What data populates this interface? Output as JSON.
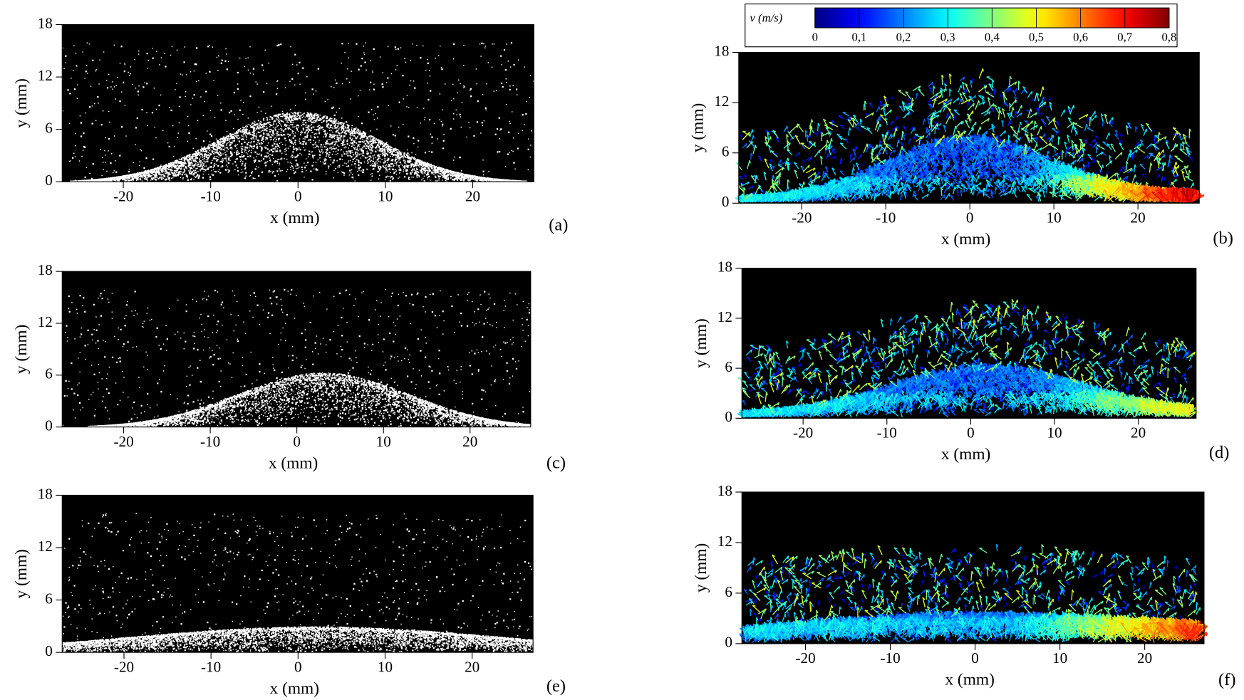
{
  "chart_data": [
    {
      "type": "image",
      "label": "(a)",
      "xlabel": "x (mm)",
      "ylabel": "y (mm)",
      "xlim": [
        -27,
        27
      ],
      "ylim": [
        0,
        18
      ],
      "xticks": [
        -20,
        -10,
        0,
        10,
        20
      ],
      "yticks": [
        0,
        6,
        12,
        18
      ],
      "background": "#000000",
      "color": "#ffffff"
    },
    {
      "type": "vector",
      "label": "(b)",
      "xlabel": "x (mm)",
      "ylabel": "y (mm)",
      "xlim": [
        -27.5,
        27.3
      ],
      "ylim": [
        0,
        18
      ],
      "xticks": [
        -20,
        -10,
        0,
        10,
        20
      ],
      "yticks": [
        0,
        6,
        12,
        18
      ],
      "background": "#000000",
      "colormap": "jet",
      "colorbar": {
        "title": "v (m/s)",
        "lim": [
          0,
          0.8
        ],
        "ticks": [
          0,
          {
            "value": 0.1,
            "label": "0,1"
          },
          {
            "value": 0.2,
            "label": "0,2"
          },
          {
            "value": 0.3,
            "label": "0,3"
          },
          {
            "value": 0.4,
            "label": "0,4"
          },
          {
            "value": 0.5,
            "label": "0,5"
          },
          {
            "value": 0.6,
            "label": "0,6"
          },
          {
            "value": 0.7,
            "label": "0,7"
          },
          {
            "value": 0.8,
            "label": "0,8"
          }
        ]
      }
    },
    {
      "type": "image",
      "label": "(c)",
      "xlabel": "x (mm)",
      "ylabel": "y (mm)",
      "xlim": [
        -27.1,
        27
      ],
      "ylim": [
        0,
        18
      ],
      "xticks": [
        -20,
        -10,
        0,
        10,
        20
      ],
      "yticks": [
        0,
        6,
        12,
        18
      ],
      "background": "#000000",
      "color": "#ffffff"
    },
    {
      "type": "vector",
      "label": "(d)",
      "xlabel": "x (mm)",
      "ylabel": "y (mm)",
      "xlim": [
        -27.3,
        26.9
      ],
      "ylim": [
        0,
        18
      ],
      "xticks": [
        -20,
        -10,
        0,
        10,
        20
      ],
      "yticks": [
        0,
        6,
        12,
        18
      ],
      "background": "#000000",
      "colormap": "jet"
    },
    {
      "type": "image",
      "label": "(e)",
      "xlabel": "x (mm)",
      "ylabel": "y (mm)",
      "xlim": [
        -27.1,
        27
      ],
      "ylim": [
        0,
        18
      ],
      "xticks": [
        -20,
        -10,
        0,
        10,
        20
      ],
      "yticks": [
        0,
        6,
        12,
        18
      ],
      "background": "#000000",
      "color": "#ffffff"
    },
    {
      "type": "vector",
      "label": "(f)",
      "xlabel": "x (mm)",
      "ylabel": "y (mm)",
      "xlim": [
        -27.5,
        27
      ],
      "ylim": [
        0,
        18
      ],
      "xticks": [
        -20,
        -10,
        0,
        10,
        20
      ],
      "yticks": [
        0,
        6,
        12,
        18
      ],
      "background": "#000000",
      "colormap": "jet"
    }
  ]
}
